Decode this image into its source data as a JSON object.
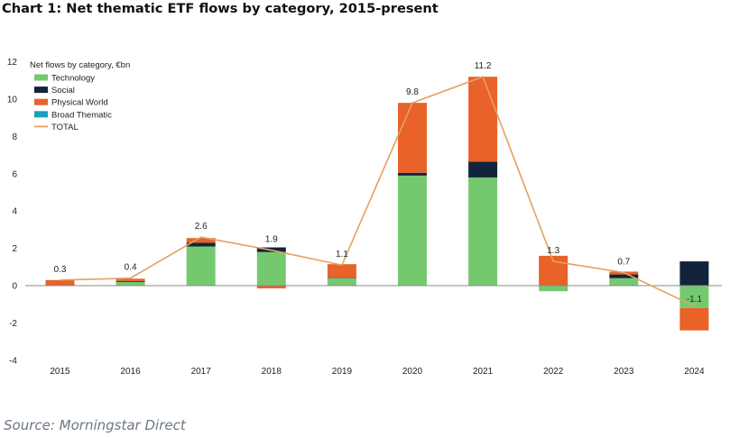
{
  "title": "Chart 1: Net thematic ETF flows by category, 2015-present",
  "source": "Source: Morningstar Direct",
  "chart_data": {
    "type": "bar",
    "subtype": "stacked-bar-with-line",
    "title": "Chart 1: Net thematic ETF flows by category, 2015-present",
    "legend_title": "Net flows by category, €bn",
    "legend_position": "top-left",
    "xlabel": "",
    "ylabel": "",
    "ylim": [
      -4,
      12
    ],
    "yticks": [
      "-4",
      "-2",
      "0",
      "2",
      "4",
      "6",
      "8",
      "10",
      "12"
    ],
    "grid": false,
    "categories": [
      "2015",
      "2016",
      "2017",
      "2018",
      "2019",
      "2020",
      "2021",
      "2022",
      "2023",
      "2024"
    ],
    "series": [
      {
        "name": "Technology",
        "kind": "bar",
        "color": "#74c96f",
        "values": [
          0.0,
          0.2,
          2.1,
          1.8,
          0.4,
          5.9,
          5.8,
          -0.3,
          0.4,
          -1.2
        ]
      },
      {
        "name": "Social",
        "kind": "bar",
        "color": "#14233c",
        "values": [
          0.0,
          0.05,
          0.2,
          0.25,
          0.02,
          0.15,
          0.85,
          0.0,
          0.2,
          1.3
        ]
      },
      {
        "name": "Physical World",
        "kind": "bar",
        "color": "#e8622a",
        "values": [
          0.3,
          0.12,
          0.25,
          -0.15,
          0.73,
          3.75,
          4.55,
          1.6,
          0.15,
          -1.2
        ]
      },
      {
        "name": "Broad Thematic",
        "kind": "bar",
        "color": "#17a2b8",
        "values": [
          0.0,
          0.0,
          0.0,
          0.0,
          0.0,
          0.0,
          0.0,
          0.0,
          0.0,
          0.0
        ]
      },
      {
        "name": "TOTAL",
        "kind": "line",
        "color": "#e3a15f",
        "values": [
          0.3,
          0.4,
          2.6,
          1.9,
          1.1,
          9.8,
          11.2,
          1.3,
          0.7,
          -1.1
        ]
      }
    ],
    "data_labels": [
      "0.3",
      "0.4",
      "2.6",
      "1.9",
      "1.1",
      "9.8",
      "11.2",
      "1.3",
      "0.7",
      "-1.1"
    ]
  }
}
